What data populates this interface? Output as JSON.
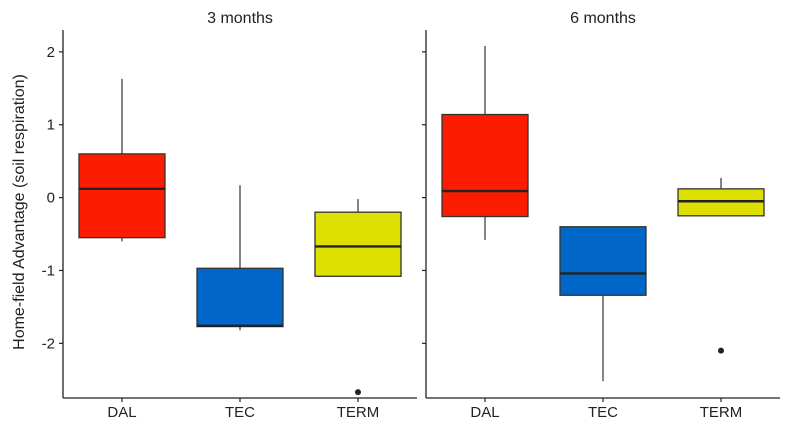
{
  "chart_data": {
    "type": "box",
    "ylabel": "Home-field Advantage (soil respiration)",
    "ylim": [
      -2.75,
      2.3
    ],
    "yticks": [
      2,
      1,
      0,
      -1,
      -2
    ],
    "ytick_labels": [
      "2",
      "1",
      "0",
      "-1",
      "-2"
    ],
    "categories": [
      "DAL",
      "TEC",
      "TERM"
    ],
    "colors": {
      "DAL": "#fc1d00",
      "TEC": "#0066c8",
      "TERM": "#dde000"
    },
    "grid": false,
    "legend": "none",
    "panels": [
      {
        "title": "3 months",
        "boxes": [
          {
            "category": "DAL",
            "min": -0.6,
            "q1": -0.55,
            "median": 0.12,
            "q3": 0.6,
            "max": 1.63,
            "outliers": []
          },
          {
            "category": "TEC",
            "min": -1.82,
            "q1": -1.77,
            "median": -1.76,
            "q3": -0.97,
            "max": 0.17,
            "outliers": []
          },
          {
            "category": "TERM",
            "min": -1.08,
            "q1": -1.08,
            "median": -0.67,
            "q3": -0.2,
            "max": -0.02,
            "outliers": [
              -2.67
            ]
          }
        ]
      },
      {
        "title": "6 months",
        "boxes": [
          {
            "category": "DAL",
            "min": -0.58,
            "q1": -0.26,
            "median": 0.09,
            "q3": 1.14,
            "max": 2.08,
            "outliers": []
          },
          {
            "category": "TEC",
            "min": -2.52,
            "q1": -1.34,
            "median": -1.04,
            "q3": -0.4,
            "max": -0.4,
            "outliers": []
          },
          {
            "category": "TERM",
            "min": -0.25,
            "q1": -0.25,
            "median": -0.05,
            "q3": 0.12,
            "max": 0.27,
            "outliers": [
              -2.1
            ]
          }
        ]
      }
    ]
  }
}
